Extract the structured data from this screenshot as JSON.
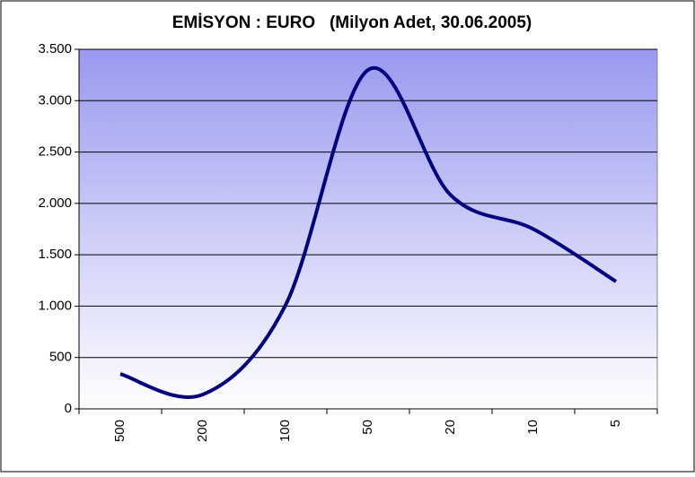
{
  "chart_data": {
    "type": "line",
    "title": "EMİSYON : EURO   (Milyon Adet, 30.06.2005)",
    "categories": [
      "500",
      "200",
      "100",
      "50",
      "20",
      "10",
      "5"
    ],
    "series": [
      {
        "name": "EURO",
        "color": "#000080",
        "values": [
          340,
          140,
          1010,
          3300,
          2080,
          1750,
          1240
        ]
      }
    ],
    "ylim": [
      0,
      3500
    ],
    "yticks": [
      0,
      500,
      {
        "value": 1000,
        "label": "1.000"
      },
      {
        "value": 1500,
        "label": "1.500"
      },
      {
        "value": 2000,
        "label": "2.000"
      },
      {
        "value": 2500,
        "label": "2.500"
      },
      {
        "value": 3000,
        "label": "3.000"
      },
      {
        "value": 3500,
        "label": "3.500"
      }
    ],
    "grid": true
  }
}
